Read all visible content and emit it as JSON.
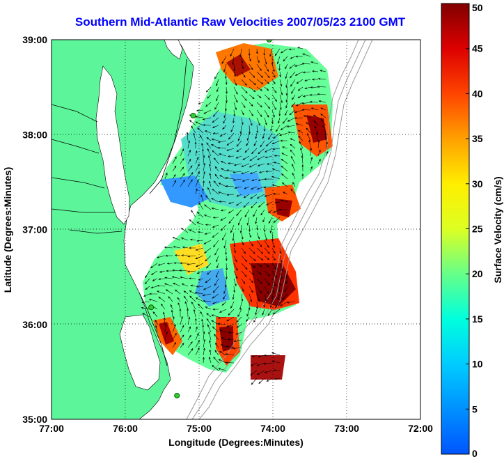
{
  "title": "Southern Mid-Atlantic Raw Velocities 2007/05/23 2100 GMT",
  "xaxis": {
    "label": "Longitude (Degrees:Minutes)",
    "ticks": [
      "77:00",
      "76:00",
      "75:00",
      "74:00",
      "73:00",
      "72:00"
    ],
    "range": [
      -77,
      -72
    ]
  },
  "yaxis": {
    "label": "Latitude (Degrees:Minutes)",
    "ticks": [
      "35:00",
      "36:00",
      "37:00",
      "38:00",
      "39:00"
    ],
    "range": [
      35,
      39
    ]
  },
  "colorbar": {
    "label": "Surface Velocity (cm/s)",
    "ticks": [
      "0",
      "5",
      "10",
      "15",
      "20",
      "25",
      "30",
      "35",
      "40",
      "45",
      "50"
    ],
    "range": [
      0,
      50
    ]
  },
  "colors": {
    "land": "#5cf59a",
    "title": "#0000ff",
    "station": "#33cc33"
  },
  "grid": "dotted",
  "stations": [
    {
      "lon": -74.05,
      "lat": 39.0
    },
    {
      "lon": -75.08,
      "lat": 38.2
    },
    {
      "lon": -75.65,
      "lat": 36.18
    },
    {
      "lon": -75.3,
      "lat": 35.25
    }
  ]
}
